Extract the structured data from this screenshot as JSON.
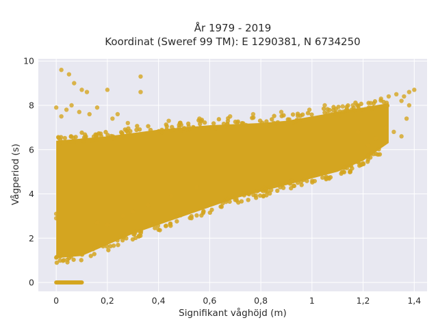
{
  "chart_data": {
    "type": "scatter",
    "title_line1": "År 1979 - 2019",
    "title_line2": "Koordinat (Sweref 99 TM): E 1290381, N 6734250",
    "xlabel": "Signifikant våghöjd (m)",
    "ylabel": "Vågperiod (s)",
    "xlim": [
      -0.07,
      1.45
    ],
    "ylim": [
      -0.4,
      10.1
    ],
    "x_ticks": [
      0,
      0.2,
      0.4,
      0.6,
      0.8,
      1.0,
      1.2,
      1.4
    ],
    "x_tick_labels": [
      "0",
      "0,2",
      "0,4",
      "0,6",
      "0,8",
      "1",
      "1,2",
      "1,4"
    ],
    "y_ticks": [
      0,
      2,
      4,
      6,
      8,
      10
    ],
    "y_tick_labels": [
      "0",
      "2",
      "4",
      "6",
      "8",
      "10"
    ],
    "grid": true,
    "marker_color": "#D4A520",
    "plot_background": "#E8E8F1",
    "band": {
      "x": [
        0.0,
        0.1,
        0.2,
        0.3,
        0.4,
        0.5,
        0.6,
        0.7,
        0.8,
        0.9,
        1.0,
        1.1,
        1.2,
        1.3
      ],
      "lower": [
        1.1,
        1.2,
        1.7,
        2.2,
        2.6,
        3.0,
        3.4,
        3.8,
        4.1,
        4.4,
        4.7,
        5.0,
        5.5,
        6.3
      ],
      "upper": [
        6.4,
        6.5,
        6.6,
        6.75,
        6.9,
        7.0,
        7.1,
        7.15,
        7.2,
        7.3,
        7.5,
        7.7,
        7.9,
        8.1
      ]
    },
    "zero_segment": {
      "x_start": 0.0,
      "x_end": 0.1,
      "y": 0
    },
    "outliers": [
      [
        0.02,
        9.6
      ],
      [
        0.05,
        9.4
      ],
      [
        0.33,
        9.3
      ],
      [
        0.07,
        9.0
      ],
      [
        0.1,
        8.7
      ],
      [
        0.12,
        8.6
      ],
      [
        0.2,
        8.7
      ],
      [
        0.33,
        8.6
      ],
      [
        0.0,
        7.9
      ],
      [
        0.02,
        7.5
      ],
      [
        0.04,
        7.8
      ],
      [
        0.06,
        8.0
      ],
      [
        0.09,
        7.7
      ],
      [
        0.13,
        7.6
      ],
      [
        0.16,
        7.9
      ],
      [
        0.22,
        7.4
      ],
      [
        0.24,
        7.6
      ],
      [
        0.28,
        7.2
      ],
      [
        0.44,
        7.3
      ],
      [
        0.56,
        7.4
      ],
      [
        0.68,
        7.5
      ],
      [
        0.77,
        7.6
      ],
      [
        0.88,
        7.7
      ],
      [
        0.99,
        7.8
      ],
      [
        1.05,
        8.0
      ],
      [
        1.12,
        7.95
      ],
      [
        1.16,
        8.0
      ],
      [
        1.23,
        8.1
      ],
      [
        1.27,
        8.3
      ],
      [
        1.3,
        8.4
      ],
      [
        1.33,
        8.5
      ],
      [
        1.36,
        8.4
      ],
      [
        1.38,
        8.6
      ],
      [
        1.4,
        8.7
      ],
      [
        1.35,
        8.2
      ],
      [
        1.38,
        8.0
      ],
      [
        1.37,
        7.4
      ],
      [
        1.35,
        6.6
      ],
      [
        1.32,
        6.8
      ],
      [
        1.29,
        7.0
      ],
      [
        1.25,
        6.5
      ],
      [
        1.22,
        6.2
      ],
      [
        1.18,
        6.8
      ],
      [
        0.16,
        2.7
      ],
      [
        0.2,
        2.6
      ],
      [
        0.26,
        3.0
      ],
      [
        0.3,
        3.2
      ],
      [
        0.36,
        3.5
      ],
      [
        0.45,
        3.9
      ],
      [
        0.55,
        4.3
      ],
      [
        0.0,
        3.1
      ],
      [
        0.0,
        2.9
      ],
      [
        0.01,
        1.4
      ],
      [
        0.01,
        1.3
      ]
    ]
  }
}
